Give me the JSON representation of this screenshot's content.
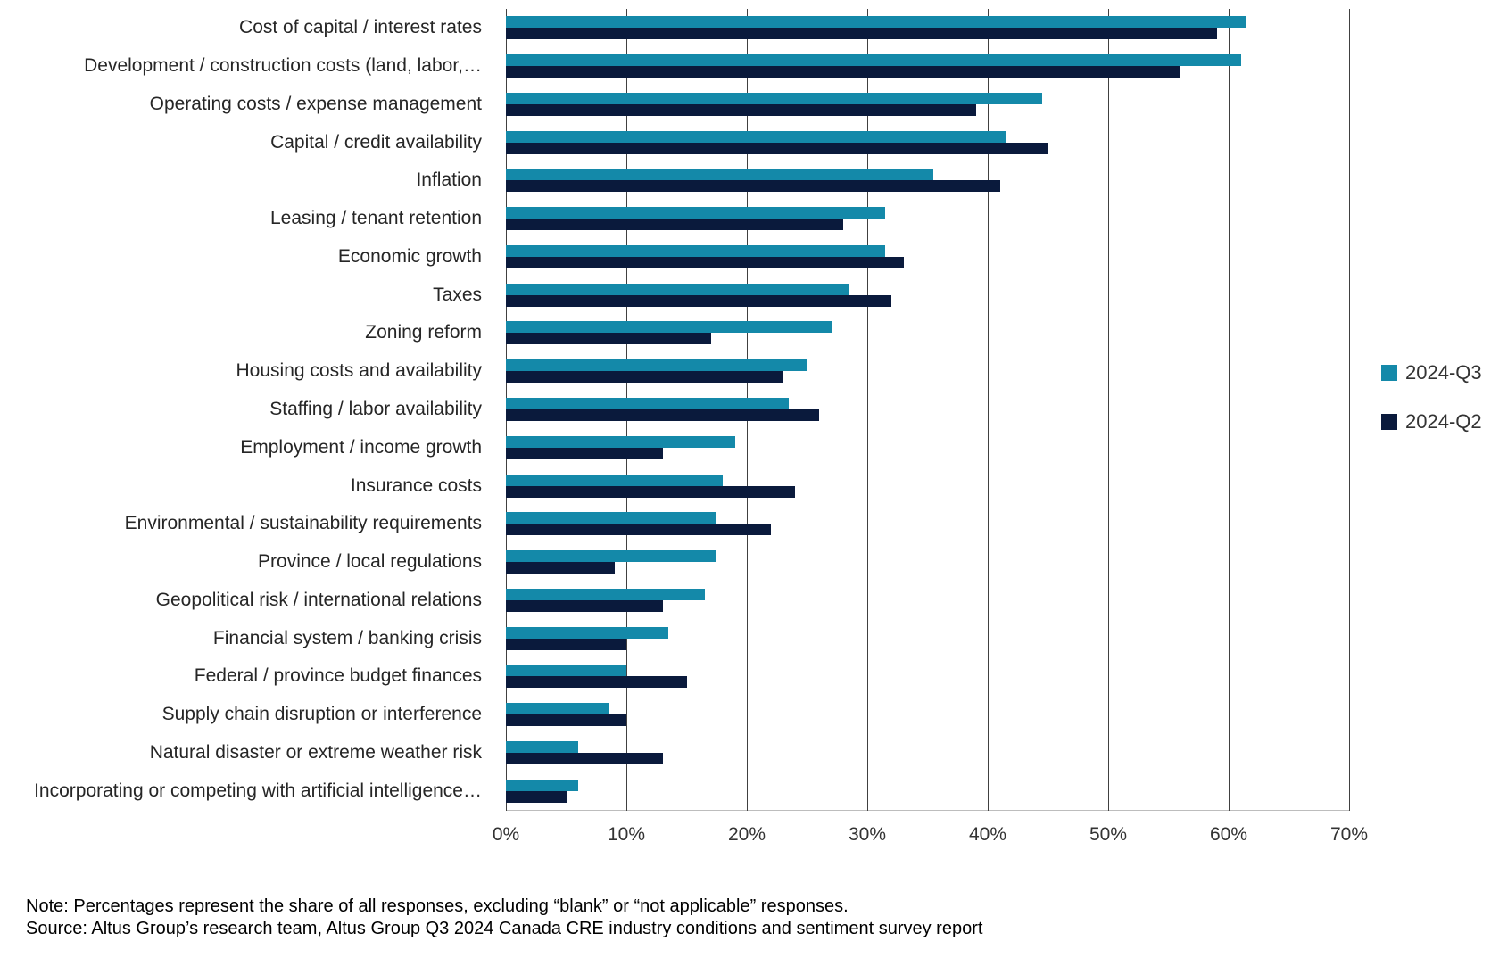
{
  "chart_data": {
    "type": "bar",
    "orientation": "horizontal",
    "title": "",
    "xlabel": "",
    "ylabel": "",
    "xlim": [
      0,
      70
    ],
    "x_tick_labels": [
      "0%",
      "10%",
      "20%",
      "30%",
      "40%",
      "50%",
      "60%",
      "70%"
    ],
    "grid": "vertical-gridlines",
    "legend_position": "right-middle",
    "categories": [
      "Cost of capital / interest rates",
      "Development / construction costs (land, labor,…",
      "Operating costs / expense management",
      "Capital / credit availability",
      "Inflation",
      "Leasing / tenant retention",
      "Economic growth",
      "Taxes",
      "Zoning reform",
      "Housing costs and availability",
      "Staffing / labor availability",
      "Employment / income growth",
      "Insurance costs",
      "Environmental / sustainability requirements",
      "Province / local regulations",
      "Geopolitical risk / international relations",
      "Financial system / banking crisis",
      "Federal / province budget finances",
      "Supply chain disruption or interference",
      "Natural disaster or extreme weather risk",
      "Incorporating or competing with artificial intelligence…"
    ],
    "series": [
      {
        "name": "2024-Q3",
        "color": "#1489A9",
        "values": [
          61.5,
          61,
          44.5,
          41.5,
          35.5,
          31.5,
          31.5,
          28.5,
          27,
          25,
          23.5,
          19,
          18,
          17.5,
          17.5,
          16.5,
          13.5,
          10,
          8.5,
          6,
          6
        ]
      },
      {
        "name": "2024-Q2",
        "color": "#0A1A3C",
        "values": [
          59,
          56,
          39,
          45,
          41,
          28,
          33,
          32,
          17,
          23,
          26,
          13,
          24,
          22,
          9,
          13,
          10,
          15,
          10,
          13,
          5
        ]
      }
    ]
  },
  "note": {
    "line1": "Note: Percentages represent the share of all responses, excluding “blank” or “not applicable” responses.",
    "line2": "Source: Altus Group’s research team, Altus Group Q3 2024 Canada CRE industry conditions and sentiment survey report"
  },
  "style": {
    "gridline_color": "#404040",
    "axis_line_color": "#bdbdbd",
    "category_label_color": "#262626",
    "tick_label_color": "#333333",
    "background": "#ffffff"
  }
}
